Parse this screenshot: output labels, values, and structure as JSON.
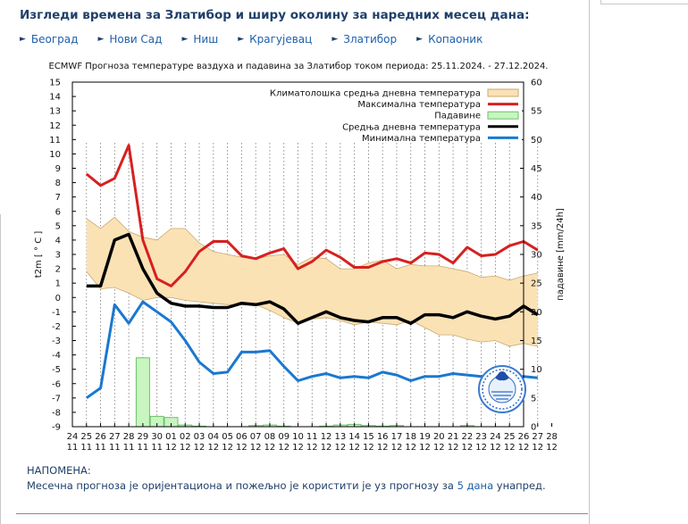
{
  "page": {
    "title": "Изгледи времена за Златибор и ширу околину за наредних месец дана:",
    "cities": [
      "Београд",
      "Нови Сад",
      "Ниш",
      "Крагујевац",
      "Златибор",
      "Копаоник"
    ],
    "note_heading": "НАПОМЕНА:",
    "note_before": "Месечна прогноза је оријентациона и пожељно је користити је уз прогнозу за ",
    "note_link": "5 дана",
    "note_after": " унапред."
  },
  "chart_data": {
    "type": "line",
    "title": "ECMWF Прогноза температуре ваздуха и падавина за Златибор током периода: 25.11.2024. - 27.12.2024.",
    "ylabel": "t2m [ ° C ]",
    "y2label": "падавине [mm/24h]",
    "ylim": [
      -9,
      15
    ],
    "y2lim": [
      0,
      60
    ],
    "grid": "vertical dotted",
    "legend_position": "top-right",
    "x_ticks_top": [
      "24",
      "25",
      "26",
      "27",
      "28",
      "29",
      "30",
      "01",
      "02",
      "03",
      "04",
      "05",
      "06",
      "07",
      "08",
      "09",
      "10",
      "11",
      "12",
      "13",
      "14",
      "15",
      "16",
      "17",
      "18",
      "19",
      "20",
      "21",
      "22",
      "23",
      "24",
      "25",
      "26",
      "27",
      "28"
    ],
    "x_ticks_bottom": [
      "11",
      "11",
      "11",
      "11",
      "11",
      "11",
      "11",
      "12",
      "12",
      "12",
      "12",
      "12",
      "12",
      "12",
      "12",
      "12",
      "12",
      "12",
      "12",
      "12",
      "12",
      "12",
      "12",
      "12",
      "12",
      "12",
      "12",
      "12",
      "12",
      "12",
      "12",
      "12",
      "12",
      "12",
      "12"
    ],
    "x": [
      25,
      26,
      27,
      28,
      29,
      30,
      31,
      32,
      33,
      34,
      35,
      36,
      37,
      38,
      39,
      40,
      41,
      42,
      43,
      44,
      45,
      46,
      47,
      48,
      49,
      50,
      51,
      52,
      53,
      54,
      55,
      56,
      57
    ],
    "series": [
      {
        "name": "Климатолошка средња дневна температура",
        "kind": "band",
        "color": "#fbe2b5",
        "edge": "#c8a870",
        "upper": [
          5.5,
          4.8,
          5.6,
          4.6,
          4.2,
          4.0,
          4.8,
          4.8,
          3.8,
          3.2,
          3.0,
          2.8,
          2.7,
          2.9,
          3.0,
          2.3,
          2.8,
          2.7,
          2.0,
          2.0,
          2.4,
          2.6,
          2.0,
          2.3,
          2.2,
          2.2,
          2.0,
          1.8,
          1.4,
          1.5,
          1.2,
          1.5,
          1.7
        ],
        "lower": [
          1.8,
          0.6,
          0.7,
          0.3,
          -0.2,
          0.0,
          0.0,
          -0.2,
          -0.3,
          -0.4,
          -0.5,
          -0.5,
          -0.5,
          -0.9,
          -1.4,
          -1.8,
          -1.5,
          -1.4,
          -1.6,
          -1.9,
          -1.7,
          -1.8,
          -1.9,
          -1.6,
          -2.1,
          -2.6,
          -2.6,
          -2.9,
          -3.1,
          -3.0,
          -3.4,
          -3.2,
          -3.4
        ]
      },
      {
        "name": "Максимална температура",
        "kind": "line",
        "color": "#d62020",
        "values": [
          8.6,
          7.8,
          8.3,
          10.6,
          4.0,
          1.3,
          0.8,
          1.8,
          3.2,
          3.9,
          3.9,
          2.9,
          2.7,
          3.1,
          3.4,
          2.0,
          2.5,
          3.3,
          2.8,
          2.1,
          2.1,
          2.5,
          2.7,
          2.4,
          3.1,
          3.0,
          2.4,
          3.5,
          2.9,
          3.0,
          3.6,
          3.9,
          3.3
        ]
      },
      {
        "name": "Падавине",
        "kind": "bar",
        "axis": "y2",
        "color": "#c8f5c0",
        "edge": "#6cc06c",
        "values": [
          0,
          0,
          0,
          0,
          12,
          1.8,
          1.6,
          0.3,
          0.1,
          0,
          0,
          0,
          0.2,
          0.3,
          0.1,
          0,
          0,
          0.1,
          0.3,
          0.4,
          0.2,
          0.1,
          0.2,
          0,
          0,
          0,
          0,
          0.2,
          0,
          0,
          0,
          0,
          0
        ]
      },
      {
        "name": "Средња дневна температура",
        "kind": "line",
        "color": "#000000",
        "values": [
          0.8,
          0.8,
          4.0,
          4.4,
          2.0,
          0.3,
          -0.4,
          -0.6,
          -0.6,
          -0.7,
          -0.7,
          -0.4,
          -0.5,
          -0.3,
          -0.8,
          -1.8,
          -1.4,
          -1.0,
          -1.4,
          -1.6,
          -1.7,
          -1.4,
          -1.4,
          -1.8,
          -1.2,
          -1.2,
          -1.4,
          -1.0,
          -1.3,
          -1.5,
          -1.3,
          -0.6,
          -1.2
        ]
      },
      {
        "name": "Минимална температура",
        "kind": "line",
        "color": "#1a78d0",
        "values": [
          -7.0,
          -6.3,
          -0.5,
          -1.8,
          -0.3,
          -1.0,
          -1.7,
          -3.0,
          -4.5,
          -5.3,
          -5.2,
          -3.8,
          -3.8,
          -3.7,
          -4.8,
          -5.8,
          -5.5,
          -5.3,
          -5.6,
          -5.5,
          -5.6,
          -5.2,
          -5.4,
          -5.8,
          -5.5,
          -5.5,
          -5.3,
          -5.4,
          -5.5,
          -5.3,
          -5.6,
          -5.5,
          -5.6
        ]
      }
    ]
  }
}
